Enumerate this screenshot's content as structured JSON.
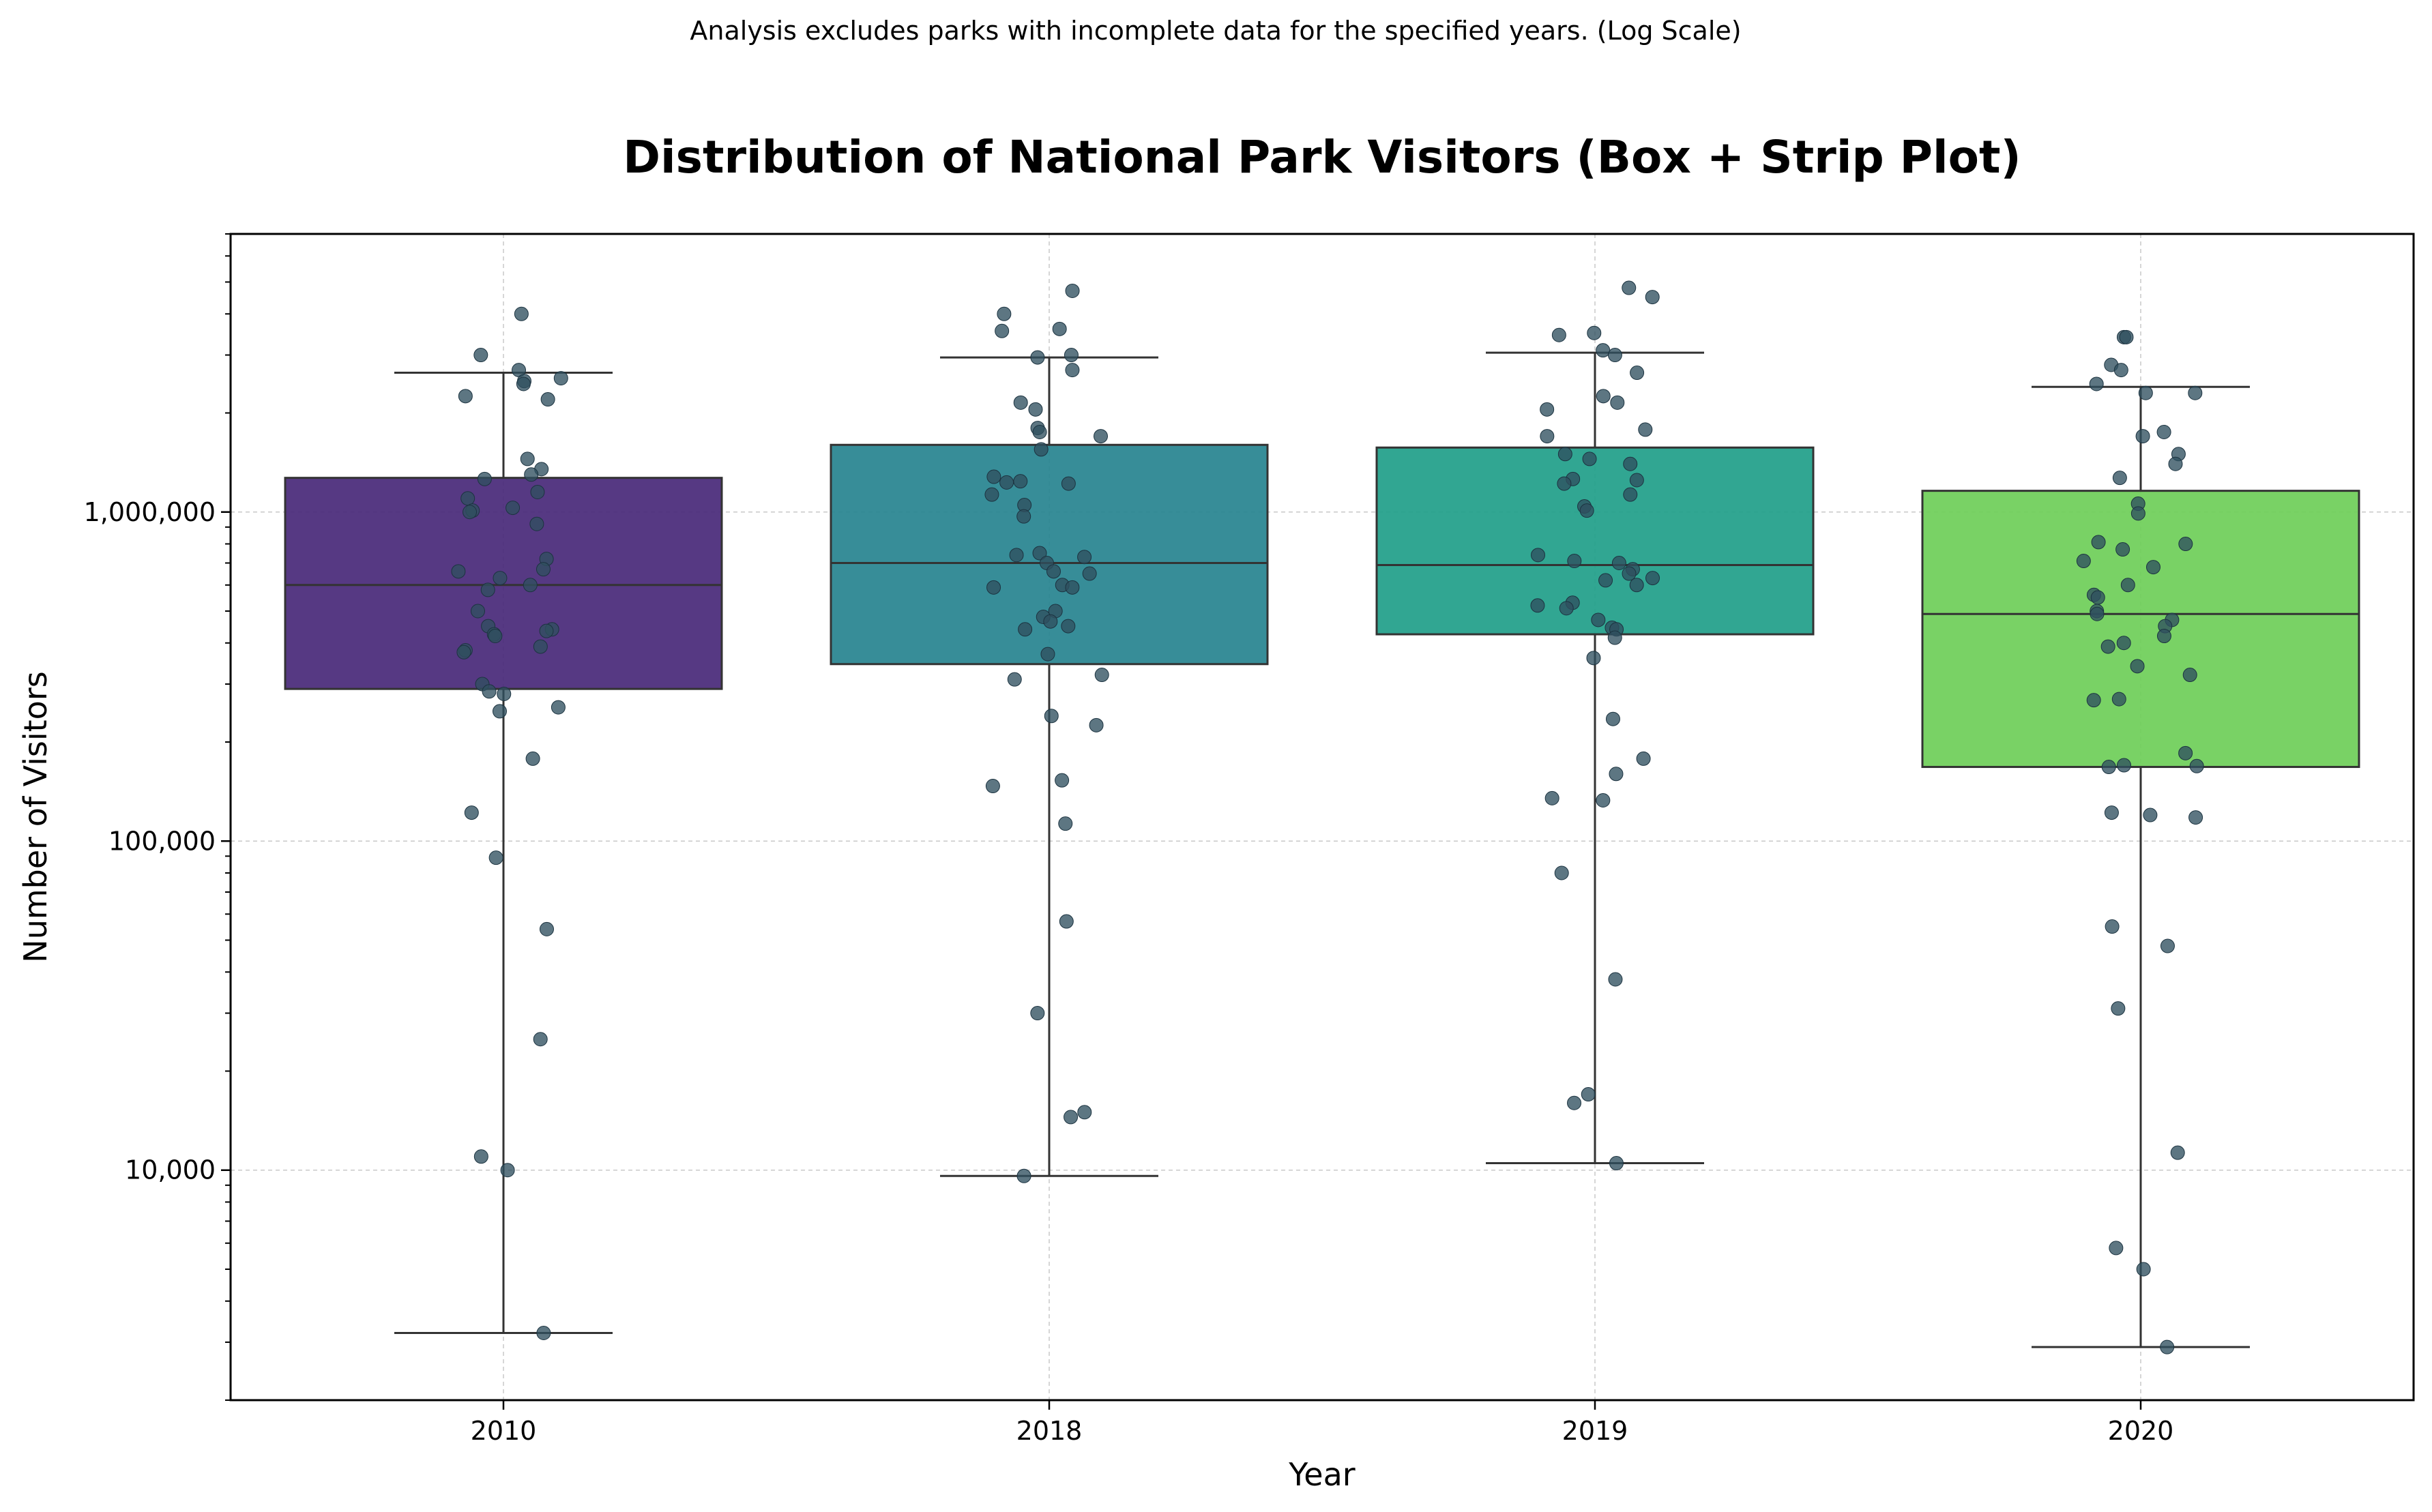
{
  "subtitle": "Analysis excludes parks with incomplete data for the specified years. (Log Scale)",
  "chart_data": {
    "type": "box",
    "title": "Distribution of National Park Visitors (Box + Strip Plot)",
    "xlabel": "Year",
    "ylabel": "Number of Visitors",
    "yscale": "log",
    "ylim": [
      2000,
      7000000
    ],
    "yticks": [
      {
        "value": 10000,
        "label": "10,000"
      },
      {
        "value": 100000,
        "label": "100,000"
      },
      {
        "value": 1000000,
        "label": "1,000,000"
      }
    ],
    "grid": true,
    "categories": [
      "2010",
      "2018",
      "2019",
      "2020"
    ],
    "boxes": [
      {
        "category": "2010",
        "color": "#482878",
        "whislo": 3200,
        "q1": 290000,
        "median": 600000,
        "q3": 1270000,
        "whishi": 2650000
      },
      {
        "category": "2018",
        "color": "#26838f",
        "whislo": 9600,
        "q1": 345000,
        "median": 700000,
        "q3": 1600000,
        "whishi": 2950000
      },
      {
        "category": "2019",
        "color": "#1f9e89",
        "whislo": 10500,
        "q1": 425000,
        "median": 690000,
        "q3": 1570000,
        "whishi": 3050000
      },
      {
        "category": "2020",
        "color": "#6ece58",
        "whislo": 2900,
        "q1": 168000,
        "median": 490000,
        "q3": 1160000,
        "whishi": 2400000
      }
    ],
    "points": [
      {
        "category": "2010",
        "values": [
          4000000,
          3000000,
          2700000,
          2550000,
          2500000,
          2450000,
          2250000,
          2200000,
          1450000,
          1350000,
          1300000,
          1260000,
          1150000,
          1100000,
          1030000,
          1010000,
          1000000,
          920000,
          720000,
          670000,
          660000,
          630000,
          600000,
          580000,
          500000,
          450000,
          440000,
          435000,
          425000,
          420000,
          390000,
          380000,
          375000,
          300000,
          285000,
          280000,
          255000,
          248000,
          178000,
          122000,
          89000,
          54000,
          25000,
          11000,
          10000,
          3200
        ]
      },
      {
        "category": "2018",
        "values": [
          4700000,
          4000000,
          3600000,
          3550000,
          3000000,
          2950000,
          2700000,
          2150000,
          2050000,
          1800000,
          1750000,
          1700000,
          1550000,
          1280000,
          1240000,
          1230000,
          1220000,
          1130000,
          1050000,
          970000,
          750000,
          740000,
          730000,
          700000,
          660000,
          650000,
          600000,
          590000,
          590000,
          500000,
          480000,
          465000,
          450000,
          440000,
          370000,
          320000,
          310000,
          240000,
          225000,
          153000,
          147000,
          113000,
          57000,
          30000,
          15000,
          14500,
          9600
        ]
      },
      {
        "category": "2019",
        "values": [
          4800000,
          4500000,
          3500000,
          3450000,
          3100000,
          3000000,
          2650000,
          2250000,
          2150000,
          2050000,
          1780000,
          1700000,
          1500000,
          1450000,
          1400000,
          1260000,
          1250000,
          1220000,
          1130000,
          1040000,
          1010000,
          740000,
          710000,
          700000,
          670000,
          650000,
          630000,
          620000,
          600000,
          530000,
          520000,
          510000,
          470000,
          445000,
          440000,
          415000,
          360000,
          235000,
          178000,
          160000,
          135000,
          133000,
          80000,
          38000,
          17000,
          16000,
          10500
        ]
      },
      {
        "category": "2020",
        "values": [
          3400000,
          3400000,
          2800000,
          2700000,
          2450000,
          2300000,
          2300000,
          1750000,
          1700000,
          1500000,
          1400000,
          1270000,
          1060000,
          990000,
          810000,
          800000,
          770000,
          710000,
          680000,
          600000,
          560000,
          550000,
          500000,
          490000,
          470000,
          450000,
          420000,
          400000,
          390000,
          340000,
          320000,
          270000,
          268000,
          185000,
          170000,
          169000,
          168000,
          122000,
          120000,
          118000,
          55000,
          48000,
          31000,
          11300,
          5800,
          5000,
          2900
        ]
      }
    ],
    "point_color": "#2f4f5f"
  }
}
